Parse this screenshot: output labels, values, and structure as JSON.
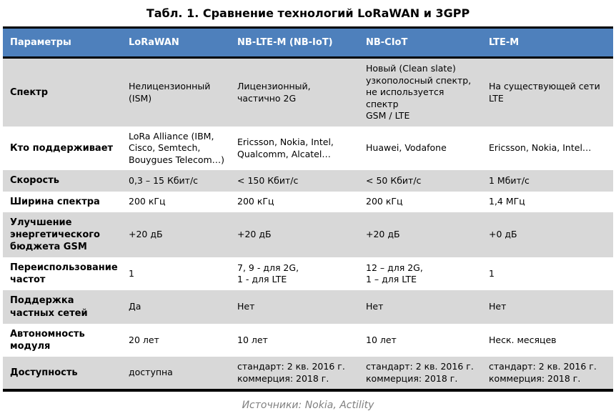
{
  "title": "Табл. 1. Сравнение технологий LoRaWAN и 3GPP",
  "chart_data": {
    "type": "table",
    "columns": [
      "Параметры",
      "LoRaWAN",
      "NB-LTE-M (NB-IoT)",
      "NB-CIoT",
      "LTE-M"
    ],
    "rows": [
      {
        "param": "Спектр",
        "values": [
          "Нелицензионный\n(ISM)",
          "Лицензионный,\nчастично 2G",
          "Новый (Clean slate)\nузкополосный спектр,\nне используется спектр\nGSM / LTE",
          "На существующей сети\nLTE"
        ]
      },
      {
        "param": "Кто поддерживает",
        "values": [
          "LoRa Alliance (IBM,\nCisco, Semtech,\nBouygues Telecom…)",
          "Ericsson, Nokia, Intel,\nQualcomm, Alcatel…",
          "Huawei, Vodafone",
          "Ericsson, Nokia, Intel…"
        ]
      },
      {
        "param": "Скорость",
        "values": [
          "0,3 – 15 Кбит/с",
          "< 150 Кбит/с",
          "< 50 Кбит/с",
          "1 Мбит/с"
        ]
      },
      {
        "param": "Ширина спектра",
        "values": [
          "200 кГц",
          "200 кГц",
          "200 кГц",
          "1,4 МГц"
        ]
      },
      {
        "param": "Улучшение\nэнергетического\nбюджета GSM",
        "values": [
          "+20 дБ",
          "+20 дБ",
          "+20 дБ",
          "+0 дБ"
        ]
      },
      {
        "param": "Переиспользование\nчастот",
        "values": [
          "1",
          "7, 9 - для 2G,\n1 - для LTE",
          "12 – для 2G,\n1 – для LTE",
          "1"
        ]
      },
      {
        "param": "Поддержка\nчастных сетей",
        "values": [
          "Да",
          "Нет",
          "Нет",
          "Нет"
        ]
      },
      {
        "param": "Автономность\nмодуля",
        "values": [
          "20 лет",
          "10 лет",
          "10 лет",
          "Неск. месяцев"
        ]
      },
      {
        "param": "Доступность",
        "values": [
          "доступна",
          "стандарт: 2 кв. 2016 г.\nкоммерция: 2018 г.",
          "стандарт: 2 кв. 2016 г.\nкоммерция: 2018 г.",
          "стандарт: 2 кв. 2016 г.\nкоммерция: 2018 г."
        ]
      }
    ]
  },
  "footer": "Источники: Nokia, Actility",
  "colors": {
    "header_bg": "#4E80BC",
    "header_text": "#FFFFFF",
    "stripe": "#D8D8D8",
    "border": "#000000",
    "footer": "#808080"
  }
}
